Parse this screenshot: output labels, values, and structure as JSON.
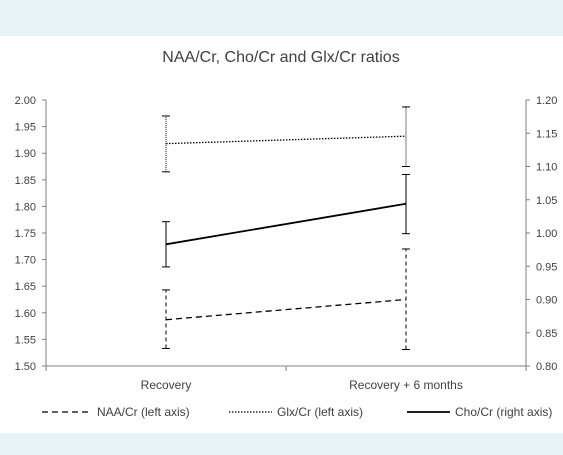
{
  "chart_data": {
    "type": "line",
    "title": "NAA/Cr, Cho/Cr and Glx/Cr ratios",
    "categories": [
      "Recovery",
      "Recovery + 6 months"
    ],
    "left_axis": {
      "ylim": [
        1.5,
        2.0
      ],
      "ticks": [
        "1.50",
        "1.55",
        "1.60",
        "1.65",
        "1.70",
        "1.75",
        "1.80",
        "1.85",
        "1.90",
        "1.95",
        "2.00"
      ]
    },
    "right_axis": {
      "ylim": [
        0.8,
        1.2
      ],
      "ticks": [
        "0.80",
        "0.85",
        "0.90",
        "0.95",
        "1.00",
        "1.05",
        "1.10",
        "1.15",
        "1.20"
      ]
    },
    "grid": false,
    "legend_position": "bottom",
    "series": [
      {
        "name": "NAA/Cr (left axis)",
        "axis": "left",
        "style": "dashed",
        "values": [
          1.587,
          1.625
        ],
        "error_low": [
          1.533,
          1.531
        ],
        "error_high": [
          1.643,
          1.72
        ]
      },
      {
        "name": "Glx/Cr (left axis)",
        "axis": "left",
        "style": "dotted",
        "values": [
          1.918,
          1.932
        ],
        "error_low": [
          1.865,
          1.875
        ],
        "error_high": [
          1.97,
          1.987
        ]
      },
      {
        "name": "Cho/Cr (right axis)",
        "axis": "right",
        "style": "solid",
        "values": [
          0.983,
          1.044
        ],
        "error_low": [
          0.949,
          0.999
        ],
        "error_high": [
          1.017,
          1.088
        ]
      }
    ],
    "colors": {
      "line": "#000000",
      "axis": "#7f7f7f",
      "text": "#404040",
      "band": "#e8f3f8"
    }
  }
}
